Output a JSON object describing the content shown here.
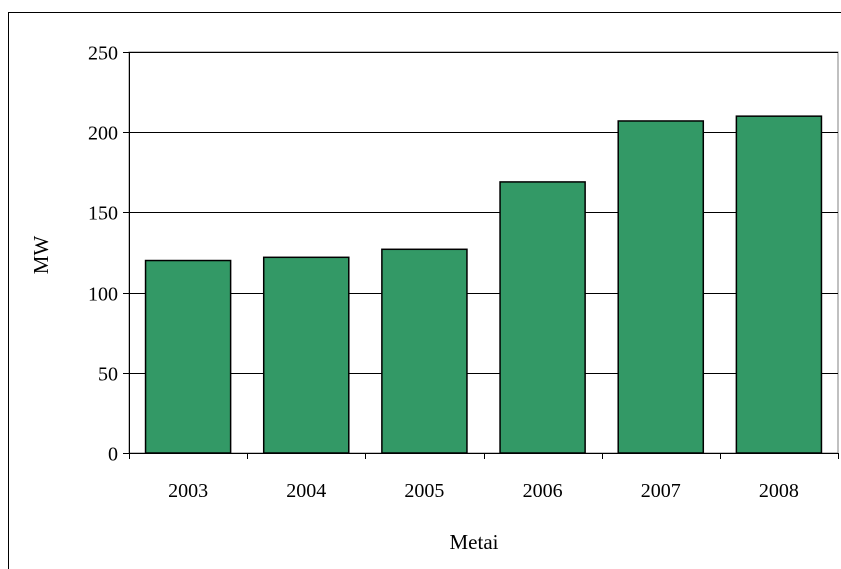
{
  "chart_data": {
    "type": "bar",
    "categories": [
      "2003",
      "2004",
      "2005",
      "2006",
      "2007",
      "2008"
    ],
    "values": [
      120,
      122,
      127,
      169,
      207,
      210
    ],
    "xlabel": "Metai",
    "ylabel": "MW",
    "ylim": [
      0,
      250
    ],
    "yticks": [
      0,
      50,
      100,
      150,
      200,
      250
    ],
    "grid": true,
    "colors": {
      "bar": "#339966",
      "bar_stroke": "#000000",
      "grid": "#000000"
    }
  }
}
